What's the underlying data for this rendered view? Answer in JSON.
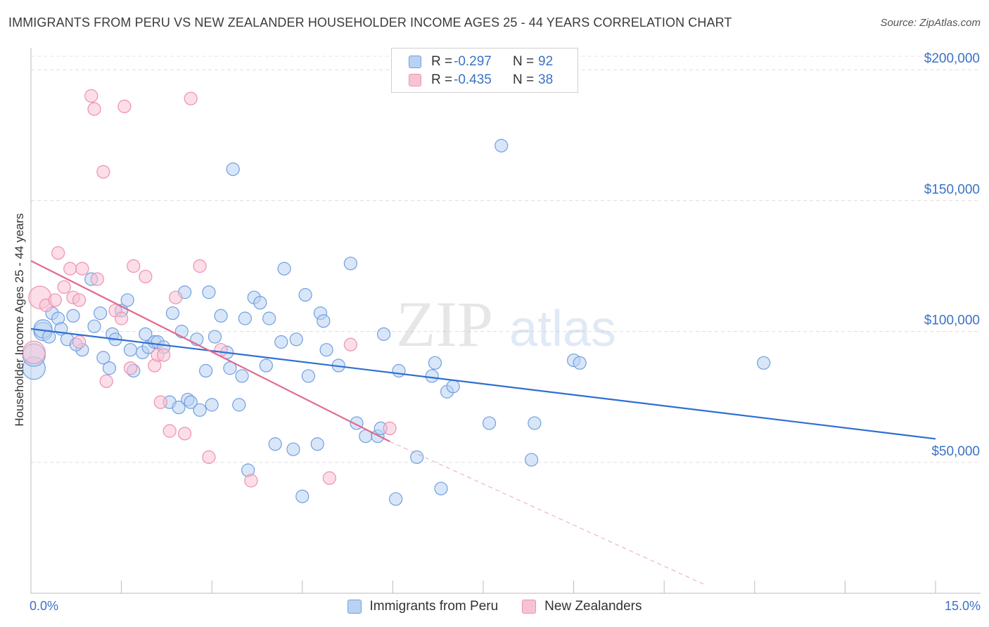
{
  "title": "IMMIGRANTS FROM PERU VS NEW ZEALANDER HOUSEHOLDER INCOME AGES 25 - 44 YEARS CORRELATION CHART",
  "source": "Source: ZipAtlas.com",
  "watermark": {
    "zip": "ZIP",
    "atlas": "atlas"
  },
  "colors": {
    "peru": "#6fa0e0",
    "peru_fill": "#b9d2f3",
    "peru_line": "#2f6fd0",
    "nz": "#ef8fb0",
    "nz_fill": "#f7c3d4",
    "nz_line": "#e0698f",
    "axis_label": "#3b72c4"
  },
  "legend_top": [
    {
      "r_label": "R =",
      "r_value": "-0.297",
      "n_label": "N =",
      "n_value": "92"
    },
    {
      "r_label": "R =",
      "r_value": "-0.435",
      "n_label": "N =",
      "n_value": "38"
    }
  ],
  "legend_bottom": [
    "Immigrants from Peru",
    "New Zealanders"
  ],
  "chart_data": {
    "type": "scatter",
    "xlabel": "",
    "ylabel": "Householder Income Ages 25 - 44 years",
    "xlim": [
      0,
      15
    ],
    "ylim": [
      0,
      210000
    ],
    "x_tick_labels": [
      "0.0%",
      "15.0%"
    ],
    "y_ticks": [
      50000,
      100000,
      150000,
      200000
    ],
    "y_tick_labels": [
      "$50,000",
      "$100,000",
      "$150,000",
      "$200,000"
    ],
    "grid": "horizontal dashed",
    "legend_placement": "top-center",
    "series": [
      {
        "name": "Immigrants from Peru",
        "trend": {
          "x": [
            0.0,
            15.0
          ],
          "y": [
            101000,
            59000
          ]
        },
        "points": [
          [
            0.05,
            86000
          ],
          [
            0.05,
            91000
          ],
          [
            0.2,
            100000
          ],
          [
            0.2,
            101000
          ],
          [
            0.3,
            98000
          ],
          [
            0.35,
            107000
          ],
          [
            0.45,
            105000
          ],
          [
            0.5,
            101000
          ],
          [
            0.6,
            97000
          ],
          [
            0.7,
            106000
          ],
          [
            0.85,
            93000
          ],
          [
            0.75,
            95000
          ],
          [
            1.0,
            120000
          ],
          [
            1.05,
            102000
          ],
          [
            1.15,
            107000
          ],
          [
            1.2,
            90000
          ],
          [
            1.3,
            86000
          ],
          [
            1.35,
            99000
          ],
          [
            1.4,
            97000
          ],
          [
            1.5,
            108000
          ],
          [
            1.6,
            112000
          ],
          [
            1.65,
            93000
          ],
          [
            1.7,
            85000
          ],
          [
            1.85,
            92000
          ],
          [
            1.9,
            99000
          ],
          [
            1.95,
            94000
          ],
          [
            2.05,
            96000
          ],
          [
            2.1,
            96000
          ],
          [
            2.2,
            94000
          ],
          [
            2.3,
            73000
          ],
          [
            2.35,
            107000
          ],
          [
            2.45,
            71000
          ],
          [
            2.5,
            100000
          ],
          [
            2.55,
            115000
          ],
          [
            2.6,
            74000
          ],
          [
            2.65,
            73000
          ],
          [
            2.75,
            97000
          ],
          [
            2.8,
            70000
          ],
          [
            2.9,
            85000
          ],
          [
            2.95,
            115000
          ],
          [
            3.0,
            72000
          ],
          [
            3.05,
            98000
          ],
          [
            3.15,
            106000
          ],
          [
            3.25,
            92000
          ],
          [
            3.3,
            86000
          ],
          [
            3.35,
            162000
          ],
          [
            3.45,
            72000
          ],
          [
            3.5,
            83000
          ],
          [
            3.55,
            105000
          ],
          [
            3.6,
            47000
          ],
          [
            3.7,
            113000
          ],
          [
            3.8,
            111000
          ],
          [
            3.9,
            87000
          ],
          [
            3.95,
            105000
          ],
          [
            4.05,
            57000
          ],
          [
            4.15,
            96000
          ],
          [
            4.2,
            124000
          ],
          [
            4.35,
            55000
          ],
          [
            4.4,
            97000
          ],
          [
            4.5,
            37000
          ],
          [
            4.55,
            114000
          ],
          [
            4.6,
            83000
          ],
          [
            4.75,
            57000
          ],
          [
            4.8,
            107000
          ],
          [
            4.85,
            104000
          ],
          [
            4.9,
            93000
          ],
          [
            5.1,
            87000
          ],
          [
            5.3,
            126000
          ],
          [
            5.4,
            65000
          ],
          [
            5.55,
            60000
          ],
          [
            5.75,
            60000
          ],
          [
            5.8,
            63000
          ],
          [
            5.85,
            99000
          ],
          [
            6.05,
            36000
          ],
          [
            6.1,
            85000
          ],
          [
            6.4,
            52000
          ],
          [
            6.65,
            83000
          ],
          [
            6.7,
            88000
          ],
          [
            6.8,
            40000
          ],
          [
            6.9,
            77000
          ],
          [
            7.0,
            79000
          ],
          [
            7.6,
            65000
          ],
          [
            7.8,
            171000
          ],
          [
            8.3,
            51000
          ],
          [
            8.35,
            65000
          ],
          [
            9.0,
            89000
          ],
          [
            9.1,
            88000
          ],
          [
            12.15,
            88000
          ]
        ]
      },
      {
        "name": "New Zealanders",
        "trend": {
          "x": [
            0.0,
            5.95
          ],
          "y": [
            127000,
            58000
          ]
        },
        "trend_dashed": {
          "x": [
            5.95,
            11.2
          ],
          "y": [
            58000,
            3000
          ]
        },
        "points": [
          [
            0.05,
            92000
          ],
          [
            0.15,
            113000
          ],
          [
            0.25,
            110000
          ],
          [
            0.4,
            112000
          ],
          [
            0.45,
            130000
          ],
          [
            0.55,
            117000
          ],
          [
            0.65,
            124000
          ],
          [
            0.7,
            113000
          ],
          [
            0.8,
            96000
          ],
          [
            0.85,
            124000
          ],
          [
            0.8,
            112000
          ],
          [
            1.0,
            190000
          ],
          [
            1.05,
            185000
          ],
          [
            1.1,
            120000
          ],
          [
            1.2,
            161000
          ],
          [
            1.25,
            81000
          ],
          [
            1.4,
            108000
          ],
          [
            1.5,
            105000
          ],
          [
            1.55,
            186000
          ],
          [
            1.65,
            86000
          ],
          [
            1.7,
            125000
          ],
          [
            1.9,
            121000
          ],
          [
            2.05,
            87000
          ],
          [
            2.1,
            91000
          ],
          [
            2.15,
            73000
          ],
          [
            2.2,
            91000
          ],
          [
            2.3,
            62000
          ],
          [
            2.4,
            113000
          ],
          [
            2.55,
            61000
          ],
          [
            2.65,
            189000
          ],
          [
            2.8,
            125000
          ],
          [
            2.95,
            52000
          ],
          [
            3.15,
            93000
          ],
          [
            3.65,
            43000
          ],
          [
            4.95,
            44000
          ],
          [
            5.3,
            95000
          ],
          [
            5.95,
            63000
          ]
        ]
      }
    ]
  }
}
